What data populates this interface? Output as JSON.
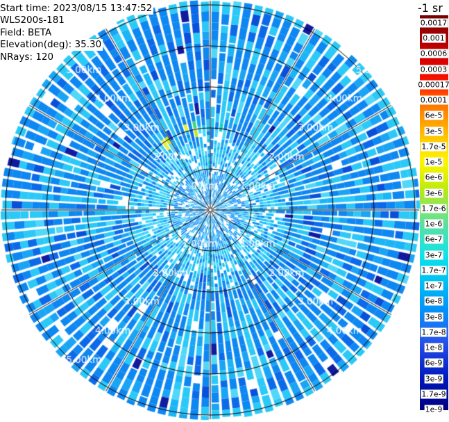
{
  "header": {
    "lines": [
      "Start time: 2023/08/15 13:47:52",
      "WLS200s-181",
      "Field: BETA",
      "Elevation(deg): 35.30",
      "NRays: 120"
    ]
  },
  "colorbar": {
    "title": "-1 sr",
    "cap_color": "#730000",
    "tick_labels": [
      "0.0017",
      "0.001",
      "0.0006",
      "0.0003",
      "0.00017",
      "0.0001",
      "6e-5",
      "3e-5",
      "1.7e-5",
      "1e-5",
      "6e-6",
      "3e-6",
      "1.7e-6",
      "1e-6",
      "6e-7",
      "3e-7",
      "1.7e-7",
      "1e-7",
      "6e-8",
      "3e-8",
      "1.7e-8",
      "1e-8",
      "6e-9",
      "3e-9",
      "1.7e-9",
      "1e-9"
    ],
    "tick_colors": [
      "#8c0000",
      "#a80000",
      "#cc0000",
      "#ea0000",
      "#ff1e00",
      "#ff6a00",
      "#ff9000",
      "#ffb600",
      "#ffdc00",
      "#fdf500",
      "#dcf000",
      "#b2e818",
      "#84e66a",
      "#5ce09c",
      "#38e2c4",
      "#12e2e8",
      "#00d2ee",
      "#00baf4",
      "#00a0f8",
      "#0886fa",
      "#2866ee",
      "#2148e4",
      "#1030d0",
      "#0018bc",
      "#000d9e",
      "#000080"
    ]
  },
  "chart_data": {
    "type": "heatmap",
    "subtype": "polar-ppi-lidar-scan",
    "instrument": "WLS200s-181",
    "field": "BETA",
    "start_time": "2023/08/15 13:47:52",
    "elevation_deg": 35.3,
    "n_rays": 120,
    "ray_width_deg": 3,
    "range_rings_km": [
      1,
      2,
      3,
      4,
      5
    ],
    "ring_labels": [
      "1.00km",
      "2.00km",
      "3.00km",
      "4.00km",
      "5.00km"
    ],
    "ring_label_azimuths_deg": [
      45,
      135,
      225,
      315
    ],
    "grid_spoke_interval_deg": 30,
    "max_range_km": 5.1,
    "value_units_label": "-1 sr",
    "value_scale": "log",
    "value_min": 1e-09,
    "value_max": 0.0017,
    "colormap": "jet",
    "legend_position": "right",
    "features": [
      {
        "name": "ambient-aerosol-field",
        "range_km": [
          0,
          5.1
        ],
        "typical_beta": 4e-08,
        "display_color": "#0d87f1"
      },
      {
        "name": "near-range-high-signal-disk",
        "range_km": [
          0,
          1.7
        ],
        "typical_beta": 1.5e-07,
        "display_color": "#45d4f8"
      },
      {
        "name": "elevated-backscatter-plume-arc",
        "azimuth_deg": [
          66,
          134
        ],
        "range_km": [
          1.8,
          2.2
        ],
        "typical_beta": 1e-05,
        "display_colors": [
          "#e9ef32",
          "#c3e81e",
          "#86e24e",
          "#3cd884",
          "#12d2c2"
        ]
      },
      {
        "name": "speckle-dropouts",
        "display_color": "#ffffff"
      },
      {
        "name": "dark-low-signal-cells",
        "typical_beta": 1e-08,
        "display_color": "#0850da"
      }
    ]
  }
}
